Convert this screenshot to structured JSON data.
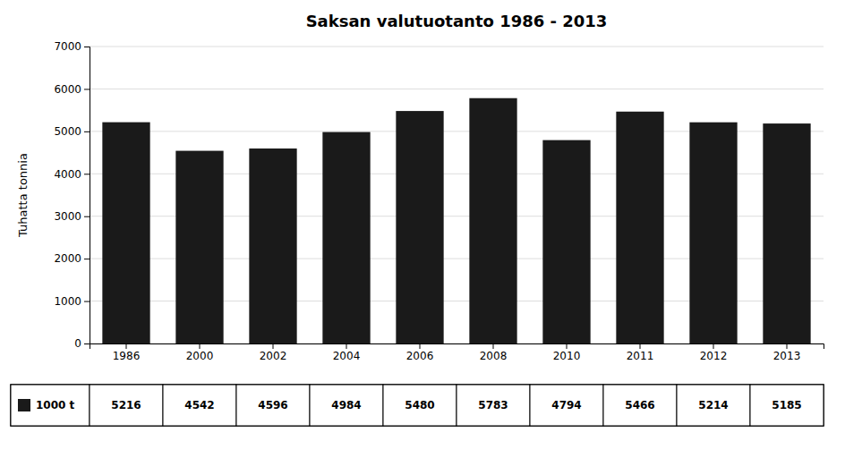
{
  "chart_data": {
    "type": "bar",
    "title": "Saksan valutuotanto 1986 - 2013",
    "ylabel": "Tuhatta tonnia",
    "categories": [
      "1986",
      "2000",
      "2002",
      "2004",
      "2006",
      "2008",
      "2010",
      "2011",
      "2012",
      "2013"
    ],
    "series": [
      {
        "name": "1000 t",
        "color": "#1a1a1a",
        "values": [
          5216,
          4542,
          4596,
          4984,
          5480,
          5783,
          4794,
          5466,
          5214,
          5185
        ]
      }
    ],
    "ylim": [
      0,
      7000
    ],
    "yticks": [
      0,
      1000,
      2000,
      3000,
      4000,
      5000,
      6000,
      7000
    ],
    "grid": true,
    "data_labels": true
  }
}
